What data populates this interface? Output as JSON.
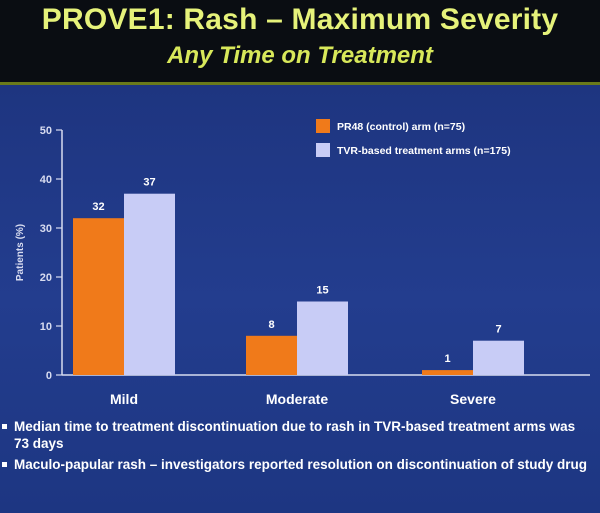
{
  "slide": {
    "title": "PROVE1: Rash – Maximum Severity",
    "subtitle": "Any Time on Treatment",
    "bullets": [
      "Median time to treatment discontinuation due to rash in TVR-based treatment arms was 73 days",
      "Maculo-papular rash – investigators reported resolution on discontinuation of study drug"
    ]
  },
  "colors": {
    "control": "#f07a1a",
    "tvr": "#c8ccf6",
    "axis": "#d8dcf0",
    "label": "#ffffff"
  },
  "chart_data": {
    "type": "bar",
    "categories": [
      "Mild",
      "Moderate",
      "Severe"
    ],
    "series": [
      {
        "name": "PR48 (control) arm (n=75)",
        "values": [
          32,
          8,
          1
        ]
      },
      {
        "name": "TVR-based treatment arms (n=175)",
        "values": [
          37,
          15,
          7
        ]
      }
    ],
    "ylabel": "Patients (%)",
    "ylim": [
      0,
      50
    ],
    "yticks": [
      0,
      10,
      20,
      30,
      40,
      50
    ],
    "legend": "top-right",
    "grid": false
  }
}
